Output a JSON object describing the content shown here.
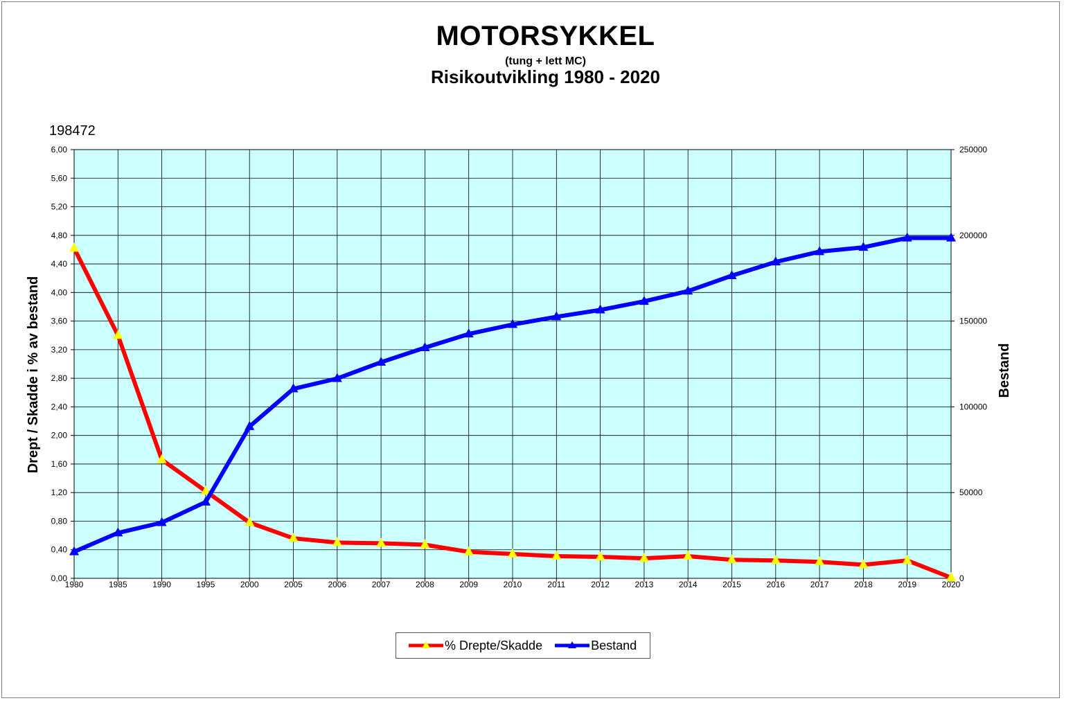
{
  "header": {
    "title": "MOTORSYKKEL",
    "subtitle": "(tung + lett MC)",
    "title2": "Risikoutvikling 1980 - 2020",
    "corner_value": "198472"
  },
  "colors": {
    "plot_bg": "#ccffff",
    "grid": "#000000",
    "percent_line": "#ff0000",
    "bestand_line": "#0000ff",
    "marker_fill": "#ffff00"
  },
  "chart_data": {
    "type": "line",
    "categories": [
      "1980",
      "1985",
      "1990",
      "1995",
      "2000",
      "2005",
      "2006",
      "2007",
      "2008",
      "2009",
      "2010",
      "2011",
      "2012",
      "2013",
      "2014",
      "2015",
      "2016",
      "2017",
      "2018",
      "2019",
      "2020"
    ],
    "series": [
      {
        "name": "% Drepte/Skadde",
        "axis": "left",
        "color": "#ff0000",
        "marker_color": "#ffff00",
        "values": [
          4.62,
          3.4,
          1.66,
          1.22,
          0.78,
          0.56,
          0.5,
          0.49,
          0.47,
          0.37,
          0.34,
          0.31,
          0.3,
          0.28,
          0.31,
          0.26,
          0.25,
          0.23,
          0.19,
          0.25,
          0.01
        ]
      },
      {
        "name": "Bestand",
        "axis": "right",
        "color": "#0000ff",
        "marker_color": "#0000ff",
        "values": [
          15500,
          26500,
          32500,
          44500,
          88500,
          110500,
          116500,
          126000,
          134500,
          142500,
          148000,
          152500,
          156500,
          161500,
          167500,
          176500,
          184500,
          190500,
          193000,
          198472,
          198472
        ]
      }
    ],
    "ylabel": "Drept / Skadde i % av bestand",
    "y2label": "Bestand",
    "ylim": [
      0,
      6
    ],
    "y2lim": [
      0,
      250000
    ],
    "yticks": [
      "0,00",
      "0,40",
      "0,80",
      "1,20",
      "1,60",
      "2,00",
      "2,40",
      "2,80",
      "3,20",
      "3,60",
      "4,00",
      "4,40",
      "4,80",
      "5,20",
      "5,60",
      "6,00"
    ],
    "y2ticks": [
      "0",
      "50000",
      "100000",
      "150000",
      "200000",
      "250000"
    ],
    "grid": true,
    "legend": "bottom-center"
  }
}
